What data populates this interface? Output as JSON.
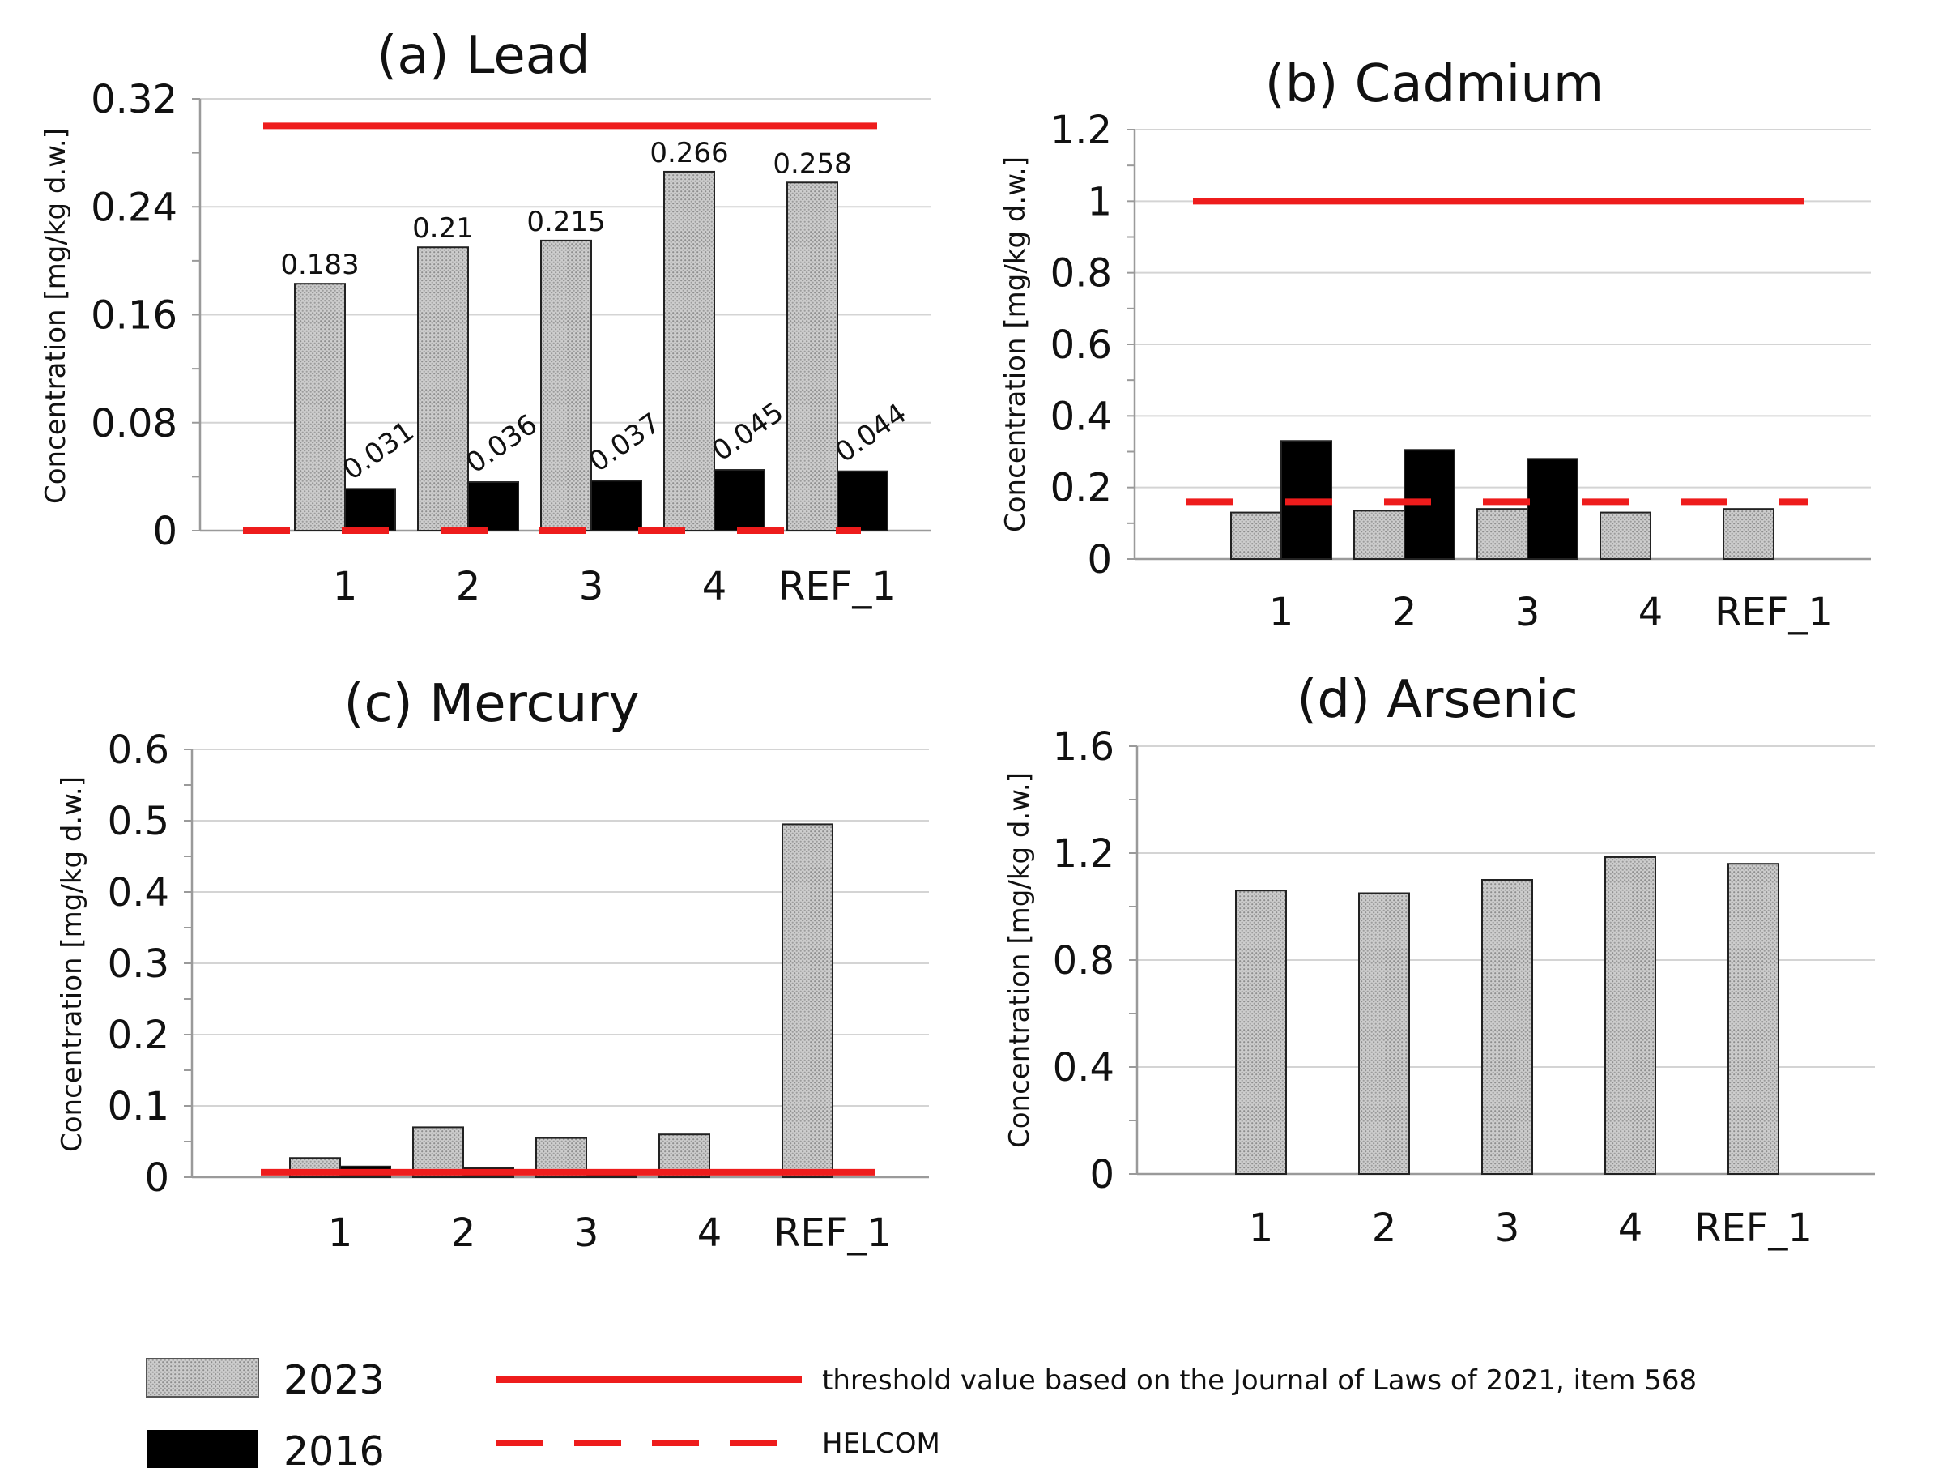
{
  "chart_data": [
    {
      "type": "bar",
      "title": "(a) Lead",
      "ylabel": "Concentration [mg/kg d.w.]",
      "categories": [
        "1",
        "2",
        "3",
        "4",
        "REF_1"
      ],
      "ylim": [
        0,
        0.32
      ],
      "yticks": [
        0,
        0.08,
        0.16,
        0.24,
        0.32
      ],
      "ytick_labels": [
        "0",
        "0.08",
        "0.16",
        "0.24",
        "0.32"
      ],
      "series": [
        {
          "name": "2023",
          "values": [
            0.183,
            0.21,
            0.215,
            0.266,
            0.258
          ],
          "labels": [
            "0.183",
            "0.21",
            "0.215",
            "0.266",
            "0.258"
          ]
        },
        {
          "name": "2016",
          "values": [
            0.031,
            0.036,
            0.037,
            0.045,
            0.044
          ],
          "labels": [
            "0.031",
            "0.036",
            "0.037",
            "0.045",
            "0.044"
          ]
        }
      ],
      "threshold": 0.3,
      "helcom": 0
    },
    {
      "type": "bar",
      "title": "(b) Cadmium",
      "ylabel": "Concentration [mg/kg d.w.]",
      "categories": [
        "1",
        "2",
        "3",
        "4",
        "REF_1"
      ],
      "ylim": [
        0,
        1.2
      ],
      "yticks": [
        0,
        0.2,
        0.4,
        0.6,
        0.8,
        1.0,
        1.2
      ],
      "ytick_labels": [
        "0",
        "0.2",
        "0.4",
        "0.6",
        "0.8",
        "1",
        "1.2"
      ],
      "series": [
        {
          "name": "2023",
          "values": [
            0.13,
            0.135,
            0.14,
            0.13,
            0.14
          ]
        },
        {
          "name": "2016",
          "values": [
            0.33,
            0.305,
            0.28,
            null,
            null
          ]
        }
      ],
      "threshold": 1.0,
      "helcom": 0.16
    },
    {
      "type": "bar",
      "title": "(c) Mercury",
      "ylabel": "Concentration [mg/kg d.w.]",
      "categories": [
        "1",
        "2",
        "3",
        "4",
        "REF_1"
      ],
      "ylim": [
        0,
        0.6
      ],
      "yticks": [
        0,
        0.1,
        0.2,
        0.3,
        0.4,
        0.5,
        0.6
      ],
      "ytick_labels": [
        "0",
        "0.1",
        "0.2",
        "0.3",
        "0.4",
        "0.5",
        "0.6"
      ],
      "series": [
        {
          "name": "2023",
          "values": [
            0.027,
            0.07,
            0.055,
            0.06,
            0.495
          ]
        },
        {
          "name": "2016",
          "values": [
            0.015,
            0.013,
            0.01,
            null,
            null
          ]
        }
      ],
      "threshold": 0.007,
      "helcom": null
    },
    {
      "type": "bar",
      "title": "(d) Arsenic",
      "ylabel": "Concentration [mg/kg d.w.]",
      "categories": [
        "1",
        "2",
        "3",
        "4",
        "REF_1"
      ],
      "ylim": [
        0,
        1.6
      ],
      "yticks": [
        0,
        0.4,
        0.8,
        1.2,
        1.6
      ],
      "ytick_labels": [
        "0",
        "0.4",
        "0.8",
        "1.2",
        "1.6"
      ],
      "series": [
        {
          "name": "2023",
          "values": [
            1.06,
            1.05,
            1.1,
            1.185,
            1.16
          ]
        }
      ],
      "threshold": null,
      "helcom": null
    }
  ],
  "legend": {
    "series_2023": "2023",
    "series_2016": "2016",
    "threshold": "threshold value based on the Journal of Laws of 2021, item 568",
    "helcom": "HELCOM"
  },
  "colors": {
    "bar_2023": "#c8c8c8",
    "bar_2016": "#000000",
    "threshold": "#ee1c1c",
    "grid": "#d4d4d4",
    "axis": "#9a9a9a"
  }
}
